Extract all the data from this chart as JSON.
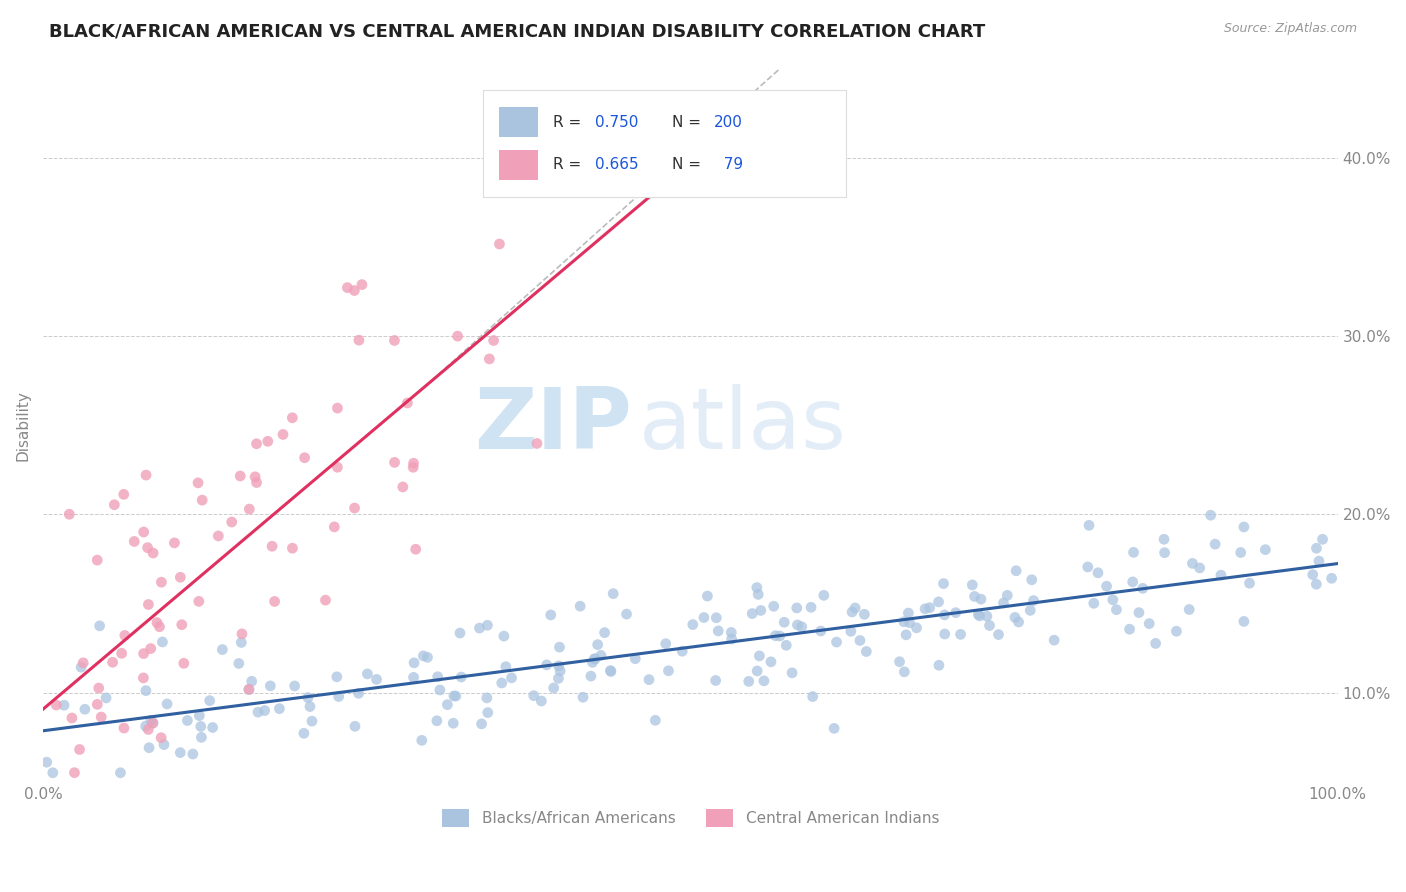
{
  "title": "BLACK/AFRICAN AMERICAN VS CENTRAL AMERICAN INDIAN DISABILITY CORRELATION CHART",
  "source": "Source: ZipAtlas.com",
  "ylabel": "Disability",
  "y_tick_vals": [
    0.1,
    0.2,
    0.3,
    0.4
  ],
  "x_range": [
    0.0,
    1.0
  ],
  "y_range": [
    0.05,
    0.45
  ],
  "blue_R": 0.75,
  "blue_N": 200,
  "pink_R": 0.665,
  "pink_N": 79,
  "blue_color": "#aac4e0",
  "pink_color": "#f0a0b8",
  "blue_line_color": "#3060a0",
  "pink_line_color": "#e03060",
  "pink_dash_color": "#c0c0c0",
  "legend_blue_label": "Blacks/African Americans",
  "legend_pink_label": "Central American Indians",
  "watermark_text": "ZIP",
  "watermark_text2": "atlas",
  "background_color": "#ffffff",
  "grid_color": "#cccccc",
  "title_color": "#222222",
  "title_fontsize": 13,
  "axis_label_color": "#888888",
  "legend_R_color": "#1a56db",
  "legend_N_color": "#1a56db",
  "blue_intercept": 0.08,
  "blue_slope": 0.095,
  "pink_intercept": 0.08,
  "pink_slope": 0.65
}
